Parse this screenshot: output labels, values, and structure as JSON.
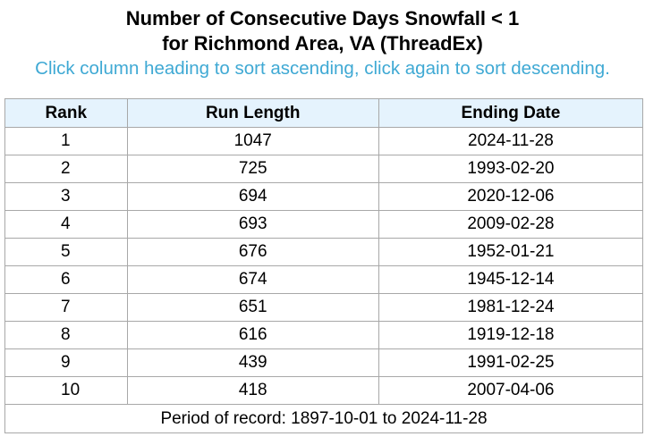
{
  "header": {
    "title_line1": "Number of Consecutive Days Snowfall < 1",
    "title_line2": "for Richmond Area, VA (ThreadEx)",
    "instructions": "Click column heading to sort ascending, click again to sort descending."
  },
  "table": {
    "columns": [
      "Rank",
      "Run Length",
      "Ending Date"
    ],
    "rows": [
      {
        "rank": "1",
        "run_length": "1047",
        "ending_date": "2024-11-28"
      },
      {
        "rank": "2",
        "run_length": "725",
        "ending_date": "1993-02-20"
      },
      {
        "rank": "3",
        "run_length": "694",
        "ending_date": "2020-12-06"
      },
      {
        "rank": "4",
        "run_length": "693",
        "ending_date": "2009-02-28"
      },
      {
        "rank": "5",
        "run_length": "676",
        "ending_date": "1952-01-21"
      },
      {
        "rank": "6",
        "run_length": "674",
        "ending_date": "1945-12-14"
      },
      {
        "rank": "7",
        "run_length": "651",
        "ending_date": "1981-12-24"
      },
      {
        "rank": "8",
        "run_length": "616",
        "ending_date": "1919-12-18"
      },
      {
        "rank": "9",
        "run_length": "439",
        "ending_date": "1991-02-25"
      },
      {
        "rank": "10",
        "run_length": "418",
        "ending_date": "2007-04-06"
      }
    ],
    "footer": "Period of record: 1897-10-01 to 2024-11-28"
  },
  "colors": {
    "instructions_text": "#3fa9d4",
    "header_background": "#e5f3fd",
    "border": "#a8a8a8"
  }
}
